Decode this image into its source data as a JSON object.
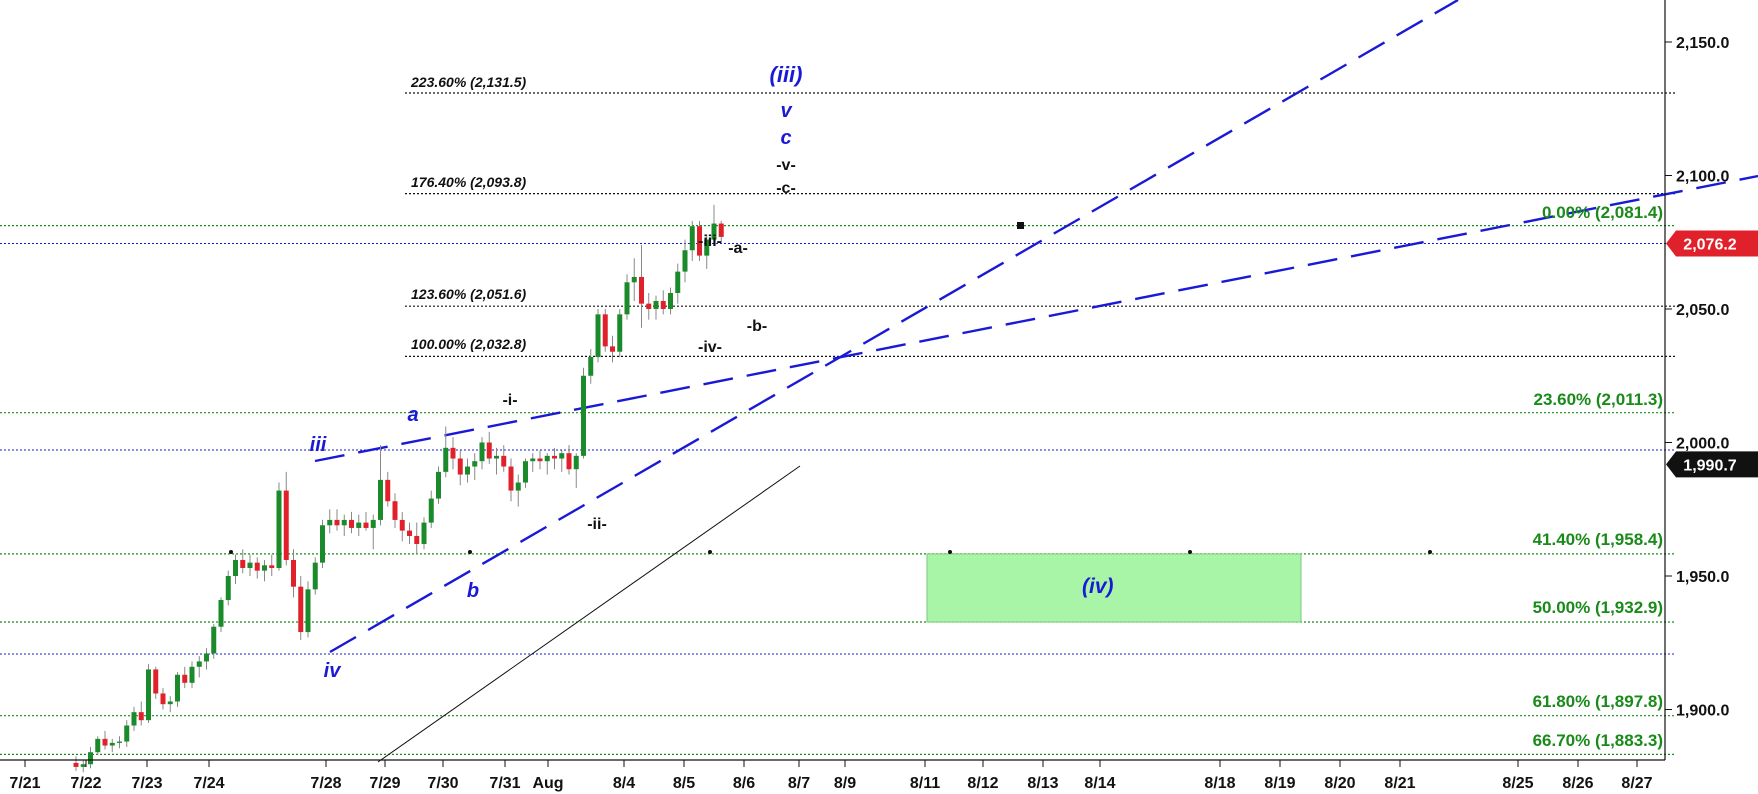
{
  "chart_data": {
    "type": "candlestick",
    "x_tick_labels": [
      "7/21",
      "7/22",
      "7/23",
      "7/24",
      "7/28",
      "7/29",
      "7/30",
      "7/31",
      "Aug",
      "8/4",
      "8/5",
      "8/6",
      "8/7",
      "8/9",
      "8/11",
      "8/12",
      "8/13",
      "8/14",
      "8/18",
      "8/19",
      "8/20",
      "8/21",
      "8/25",
      "8/26",
      "8/27"
    ],
    "y_ticks": [
      1900,
      1950,
      2000,
      2050,
      2100,
      2150
    ],
    "y_tick_labels": [
      "1,900.0",
      "1,950.0",
      "2,000.0",
      "2,050.0",
      "2,100.0",
      "2,150.0"
    ],
    "ylim": [
      1876,
      2166
    ],
    "price_badges": [
      {
        "value": 2076.2,
        "text": "2,076.2",
        "color": "#e0202a"
      },
      {
        "value": 1990.7,
        "text": "1,990.7",
        "color": "#111111"
      }
    ],
    "colors": {
      "up": "#1a8a2a",
      "down": "#e0202a",
      "wick": "#888888",
      "trend": "#1a1ad6",
      "retracement": "#1a8a1a",
      "extension": "#111111",
      "zone_fill": "#a8f5a8"
    },
    "retracement_levels": [
      {
        "pct": "0.00%",
        "value": 2081.4,
        "text": "0.00% (2,081.4)"
      },
      {
        "pct": "23.60%",
        "value": 2011.3,
        "text": "23.60% (2,011.3)"
      },
      {
        "pct": "41.40%",
        "value": 1958.4,
        "text": "41.40% (1,958.4)"
      },
      {
        "pct": "50.00%",
        "value": 1932.9,
        "text": "50.00% (1,932.9)"
      },
      {
        "pct": "61.80%",
        "value": 1897.8,
        "text": "61.80% (1,897.8)"
      },
      {
        "pct": "66.70%",
        "value": 1883.3,
        "text": "66.70% (1,883.3)"
      }
    ],
    "extension_levels": [
      {
        "pct": "223.60%",
        "value": 2131.5,
        "text": "223.60% (2,131.5)"
      },
      {
        "pct": "176.40%",
        "value": 2093.8,
        "text": "176.40% (2,093.8)"
      },
      {
        "pct": "123.60%",
        "value": 2051.6,
        "text": "123.60% (2,051.6)"
      },
      {
        "pct": "100.00%",
        "value": 2032.8,
        "text": "100.00% (2,032.8)"
      }
    ],
    "blue_dotted_levels": [
      2076.2,
      1997.5,
      1921.0
    ],
    "target_zone": {
      "label": "(iv)",
      "top": 1958.4,
      "bottom": 1932.9
    },
    "wave_labels_blue": [
      "(iii)",
      "v",
      "c",
      "iii",
      "a",
      "b",
      "iv"
    ],
    "wave_labels_black": [
      "-v-",
      "-c-",
      "-iii-",
      "-a-",
      "-b-",
      "-iv-",
      "-i-",
      "-ii-"
    ],
    "candles": [
      [
        1880.0,
        1882.5,
        1877.0,
        1878.5
      ],
      [
        1878.5,
        1881.0,
        1876.5,
        1879.5
      ],
      [
        1879.5,
        1886.0,
        1878.0,
        1884.0
      ],
      [
        1884.0,
        1890.0,
        1883.0,
        1889.0
      ],
      [
        1889.0,
        1892.0,
        1885.0,
        1886.5
      ],
      [
        1886.5,
        1889.0,
        1884.0,
        1887.5
      ],
      [
        1887.5,
        1890.0,
        1885.5,
        1888.0
      ],
      [
        1888.0,
        1896.0,
        1886.0,
        1894.0
      ],
      [
        1894.0,
        1901.0,
        1892.0,
        1899.0
      ],
      [
        1899.0,
        1903.0,
        1894.0,
        1896.0
      ],
      [
        1896.0,
        1917.0,
        1895.0,
        1915.0
      ],
      [
        1915.0,
        1916.0,
        1904.0,
        1906.0
      ],
      [
        1906.0,
        1908.0,
        1900.0,
        1902.0
      ],
      [
        1902.0,
        1905.0,
        1899.0,
        1903.0
      ],
      [
        1903.0,
        1914.0,
        1901.0,
        1913.0
      ],
      [
        1913.0,
        1916.0,
        1908.0,
        1910.0
      ],
      [
        1910.0,
        1918.0,
        1908.0,
        1916.0
      ],
      [
        1916.0,
        1920.0,
        1912.0,
        1918.0
      ],
      [
        1918.0,
        1923.0,
        1915.0,
        1921.0
      ],
      [
        1921.0,
        1932.0,
        1919.0,
        1931.0
      ],
      [
        1931.0,
        1942.0,
        1929.0,
        1941.0
      ],
      [
        1941.0,
        1952.0,
        1939.0,
        1950.0
      ],
      [
        1950.0,
        1958.0,
        1947.0,
        1956.0
      ],
      [
        1956.0,
        1960.0,
        1951.0,
        1953.0
      ],
      [
        1953.0,
        1958.0,
        1950.0,
        1955.0
      ],
      [
        1955.0,
        1957.0,
        1949.0,
        1952.0
      ],
      [
        1952.0,
        1956.0,
        1948.0,
        1954.0
      ],
      [
        1954.0,
        1958.0,
        1950.0,
        1953.0
      ],
      [
        1953.0,
        1985.0,
        1952.0,
        1982.0
      ],
      [
        1982.0,
        1989.0,
        1954.0,
        1956.0
      ],
      [
        1956.0,
        1960.0,
        1942.0,
        1946.0
      ],
      [
        1946.0,
        1950.0,
        1926.0,
        1929.0
      ],
      [
        1929.0,
        1948.0,
        1927.0,
        1945.0
      ],
      [
        1945.0,
        1957.0,
        1943.0,
        1955.0
      ],
      [
        1955.0,
        1971.0,
        1953.0,
        1969.0
      ],
      [
        1969.0,
        1975.0,
        1966.0,
        1971.0
      ],
      [
        1971.0,
        1975.0,
        1967.0,
        1969.0
      ],
      [
        1969.0,
        1973.0,
        1965.0,
        1971.0
      ],
      [
        1971.0,
        1974.0,
        1966.0,
        1968.0
      ],
      [
        1968.0,
        1973.0,
        1965.0,
        1970.0
      ],
      [
        1970.0,
        1974.0,
        1967.0,
        1968.0
      ],
      [
        1968.0,
        1973.0,
        1960.0,
        1971.0
      ],
      [
        1971.0,
        1999.0,
        1969.0,
        1986.0
      ],
      [
        1986.0,
        1989.0,
        1976.0,
        1978.0
      ],
      [
        1978.0,
        1981.0,
        1968.0,
        1971.0
      ],
      [
        1971.0,
        1974.0,
        1963.0,
        1967.0
      ],
      [
        1967.0,
        1970.0,
        1962.0,
        1965.0
      ],
      [
        1965.0,
        1970.0,
        1958.0,
        1962.0
      ],
      [
        1962.0,
        1972.0,
        1960.0,
        1970.0
      ],
      [
        1970.0,
        1982.0,
        1968.0,
        1979.0
      ],
      [
        1979.0,
        1991.0,
        1977.0,
        1989.0
      ],
      [
        1989.0,
        2006.0,
        1987.0,
        1998.0
      ],
      [
        1998.0,
        2002.0,
        1990.0,
        1994.0
      ],
      [
        1994.0,
        1997.0,
        1984.0,
        1988.0
      ],
      [
        1988.0,
        1994.0,
        1985.0,
        1991.0
      ],
      [
        1991.0,
        1996.0,
        1986.0,
        1993.0
      ],
      [
        1993.0,
        2002.0,
        1990.0,
        2000.0
      ],
      [
        2000.0,
        2004.0,
        1992.0,
        1994.0
      ],
      [
        1994.0,
        1998.0,
        1988.0,
        1995.0
      ],
      [
        1995.0,
        1999.0,
        1989.0,
        1991.0
      ],
      [
        1991.0,
        1994.0,
        1978.0,
        1982.0
      ],
      [
        1982.0,
        1988.0,
        1976.0,
        1985.0
      ],
      [
        1985.0,
        1994.0,
        1983.0,
        1993.0
      ],
      [
        1993.0,
        1996.0,
        1989.0,
        1994.0
      ],
      [
        1994.0,
        1997.0,
        1990.0,
        1993.0
      ],
      [
        1993.0,
        1996.0,
        1988.0,
        1995.0
      ],
      [
        1995.0,
        1998.0,
        1990.0,
        1994.0
      ],
      [
        1994.0,
        1997.0,
        1989.0,
        1996.0
      ],
      [
        1996.0,
        1999.0,
        1988.0,
        1990.0
      ],
      [
        1990.0,
        1996.0,
        1983.0,
        1995.0
      ],
      [
        1995.0,
        2028.0,
        1994.0,
        2025.0
      ],
      [
        2025.0,
        2035.0,
        2022.0,
        2032.0
      ],
      [
        2032.0,
        2050.0,
        2030.0,
        2048.0
      ],
      [
        2048.0,
        2050.0,
        2034.0,
        2036.0
      ],
      [
        2036.0,
        2040.0,
        2030.0,
        2034.0
      ],
      [
        2034.0,
        2050.0,
        2032.0,
        2048.0
      ],
      [
        2048.0,
        2063.0,
        2046.0,
        2060.0
      ],
      [
        2060.0,
        2069.0,
        2053.0,
        2062.0
      ],
      [
        2062.0,
        2074.0,
        2043.0,
        2052.0
      ],
      [
        2052.0,
        2056.0,
        2046.0,
        2050.0
      ],
      [
        2050.0,
        2055.0,
        2046.0,
        2053.0
      ],
      [
        2053.0,
        2057.0,
        2048.0,
        2050.0
      ],
      [
        2050.0,
        2058.0,
        2048.0,
        2056.0
      ],
      [
        2056.0,
        2067.0,
        2052.0,
        2064.0
      ],
      [
        2064.0,
        2076.0,
        2060.0,
        2072.0
      ],
      [
        2072.0,
        2083.0,
        2068.0,
        2081.0
      ],
      [
        2081.0,
        2083.0,
        2068.0,
        2070.0
      ],
      [
        2070.0,
        2078.0,
        2065.0,
        2076.0
      ],
      [
        2076.0,
        2089.0,
        2074.0,
        2082.0
      ],
      [
        2082.0,
        2083.0,
        2075.0,
        2077.0
      ]
    ]
  }
}
